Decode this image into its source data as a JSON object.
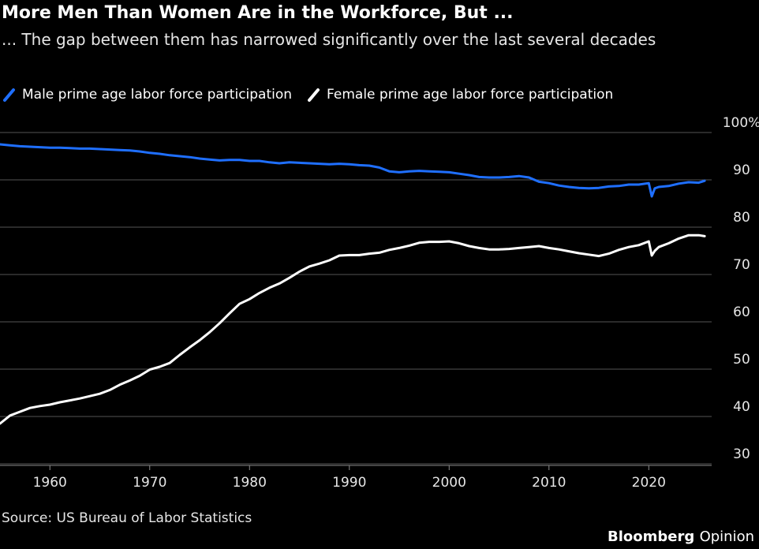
{
  "colors": {
    "male": "#1f6fff",
    "female": "#ffffff",
    "grid": "#555555",
    "opinion": "#1f6fff"
  },
  "source": "Source: US Bureau of Labor Statistics",
  "branding": {
    "name": "Bloomberg",
    "suffix": "Opinion"
  },
  "chart_data": {
    "type": "line",
    "title": "More Men Than Women Are in the Workforce, But ...",
    "subtitle": "... The gap between them has narrowed significantly over the last several decades",
    "xlabel": "",
    "ylabel": "",
    "xlim": [
      1955,
      2026.3
    ],
    "ylim": [
      27,
      104
    ],
    "x_ticks": [
      1960,
      1970,
      1980,
      1990,
      2000,
      2010,
      2020
    ],
    "y_ticks": [
      {
        "value": 100,
        "label": "100%"
      },
      {
        "value": 90,
        "label": "90"
      },
      {
        "value": 80,
        "label": "80"
      },
      {
        "value": 70,
        "label": "70"
      },
      {
        "value": 60,
        "label": "60"
      },
      {
        "value": 50,
        "label": "50"
      },
      {
        "value": 40,
        "label": "40"
      },
      {
        "value": 30,
        "label": "30"
      }
    ],
    "grid": true,
    "legend_position": "top-left",
    "series": [
      {
        "name": "Male prime age labor force participation",
        "x": [
          1955,
          1956,
          1957,
          1958,
          1959,
          1960,
          1961,
          1962,
          1963,
          1964,
          1965,
          1966,
          1967,
          1968,
          1969,
          1970,
          1971,
          1972,
          1973,
          1974,
          1975,
          1976,
          1977,
          1978,
          1979,
          1980,
          1981,
          1982,
          1983,
          1984,
          1985,
          1986,
          1987,
          1988,
          1989,
          1990,
          1991,
          1992,
          1993,
          1994,
          1995,
          1996,
          1997,
          1998,
          1999,
          2000,
          2001,
          2002,
          2003,
          2004,
          2005,
          2006,
          2007,
          2008,
          2009,
          2010,
          2011,
          2012,
          2013,
          2014,
          2015,
          2016,
          2017,
          2018,
          2019,
          2020.0,
          2020.3,
          2020.6,
          2021,
          2022,
          2023,
          2024,
          2025,
          2025.6
        ],
        "y": [
          97.5,
          97.3,
          97.1,
          97.0,
          96.9,
          96.8,
          96.8,
          96.7,
          96.6,
          96.6,
          96.5,
          96.4,
          96.3,
          96.2,
          96.0,
          95.7,
          95.5,
          95.2,
          95.0,
          94.8,
          94.5,
          94.3,
          94.1,
          94.2,
          94.2,
          94.0,
          94.0,
          93.7,
          93.5,
          93.7,
          93.6,
          93.5,
          93.4,
          93.3,
          93.4,
          93.3,
          93.1,
          93.0,
          92.6,
          91.8,
          91.6,
          91.8,
          91.9,
          91.8,
          91.7,
          91.6,
          91.3,
          91.0,
          90.6,
          90.5,
          90.5,
          90.6,
          90.8,
          90.5,
          89.6,
          89.3,
          88.8,
          88.5,
          88.3,
          88.2,
          88.3,
          88.6,
          88.7,
          89.0,
          89.0,
          89.3,
          86.5,
          88.2,
          88.5,
          88.7,
          89.2,
          89.5,
          89.4,
          89.8
        ]
      },
      {
        "name": "Female prime age labor force participation",
        "x": [
          1955,
          1956,
          1957,
          1958,
          1959,
          1960,
          1961,
          1962,
          1963,
          1964,
          1965,
          1966,
          1967,
          1968,
          1969,
          1970,
          1971,
          1972,
          1973,
          1974,
          1975,
          1976,
          1977,
          1978,
          1979,
          1980,
          1981,
          1982,
          1983,
          1984,
          1985,
          1986,
          1987,
          1988,
          1989,
          1990,
          1991,
          1992,
          1993,
          1994,
          1995,
          1996,
          1997,
          1998,
          1999,
          2000,
          2001,
          2002,
          2003,
          2004,
          2005,
          2006,
          2007,
          2008,
          2009,
          2010,
          2011,
          2012,
          2013,
          2014,
          2015,
          2016,
          2017,
          2018,
          2019,
          2020.0,
          2020.3,
          2020.6,
          2021,
          2022,
          2023,
          2024,
          2025,
          2025.6
        ],
        "y": [
          38.5,
          40.2,
          41.0,
          41.8,
          42.2,
          42.5,
          43.0,
          43.4,
          43.8,
          44.3,
          44.8,
          45.6,
          46.7,
          47.6,
          48.6,
          49.9,
          50.5,
          51.3,
          53.0,
          54.6,
          56.1,
          57.8,
          59.7,
          61.8,
          63.8,
          64.8,
          66.1,
          67.2,
          68.1,
          69.3,
          70.6,
          71.7,
          72.3,
          73.0,
          74.0,
          74.1,
          74.1,
          74.4,
          74.6,
          75.2,
          75.6,
          76.1,
          76.7,
          76.9,
          76.9,
          77.0,
          76.6,
          76.0,
          75.6,
          75.3,
          75.3,
          75.4,
          75.6,
          75.8,
          76.0,
          75.6,
          75.3,
          74.9,
          74.5,
          74.2,
          73.9,
          74.4,
          75.2,
          75.8,
          76.2,
          77.0,
          74.0,
          75.0,
          75.8,
          76.6,
          77.6,
          78.3,
          78.3,
          78.1
        ]
      }
    ]
  }
}
